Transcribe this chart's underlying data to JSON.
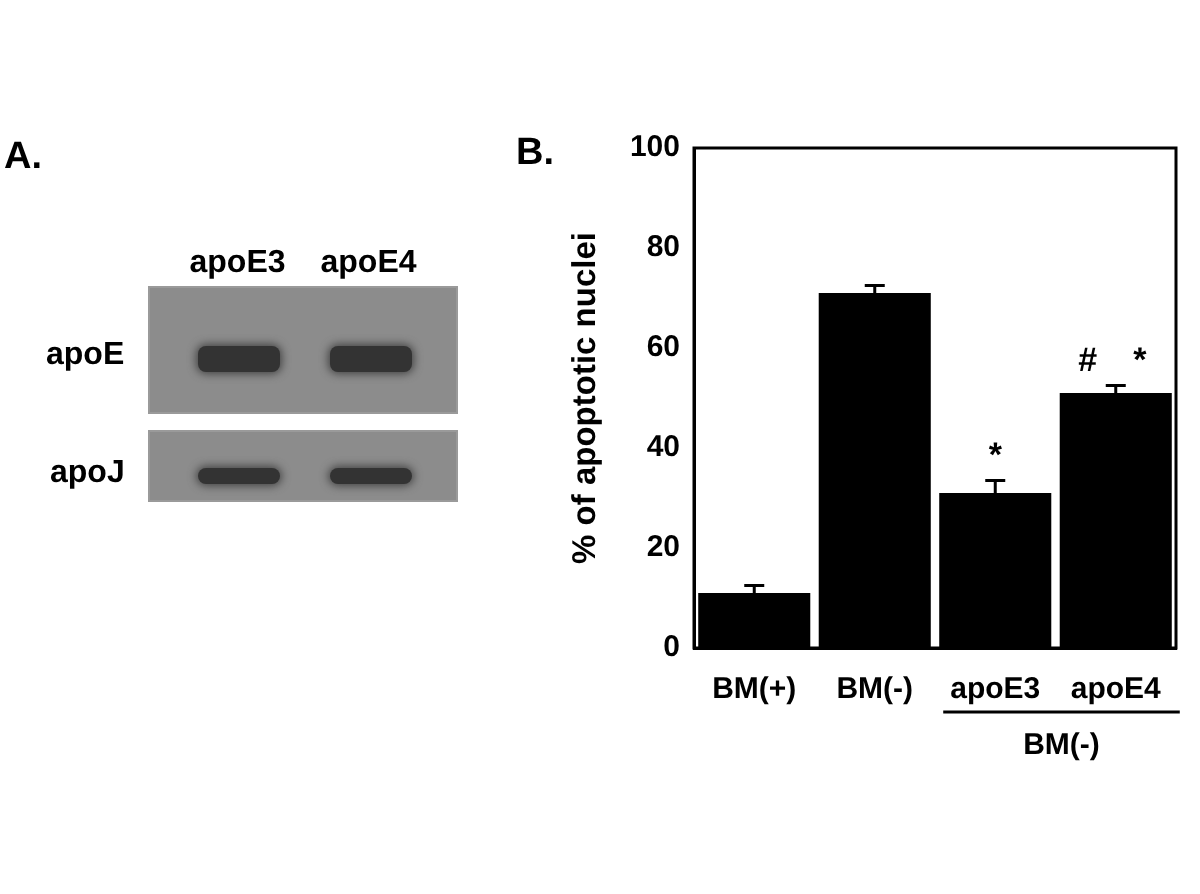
{
  "chart_data": [
    {
      "type": "other",
      "title": "A.",
      "categories": [
        "apoE3",
        "apoE4"
      ],
      "y_categories": [
        "apoE",
        "apoJ"
      ]
    },
    {
      "type": "bar",
      "title": "B.",
      "ylabel": "% of apoptotic nuclei",
      "categories": [
        "BM(+)",
        "BM(-)",
        "apoE3",
        "apoE4"
      ],
      "values": [
        11,
        71,
        31,
        51
      ],
      "errors": [
        1.5,
        1.5,
        2.5,
        1.5
      ],
      "color": "#000000",
      "ylim": [
        0,
        100
      ],
      "yticks": [
        0,
        20,
        40,
        60,
        80,
        100
      ],
      "grid": false,
      "legend": false,
      "annotations": [
        "*",
        "#",
        "*",
        "BM(-)"
      ]
    }
  ]
}
